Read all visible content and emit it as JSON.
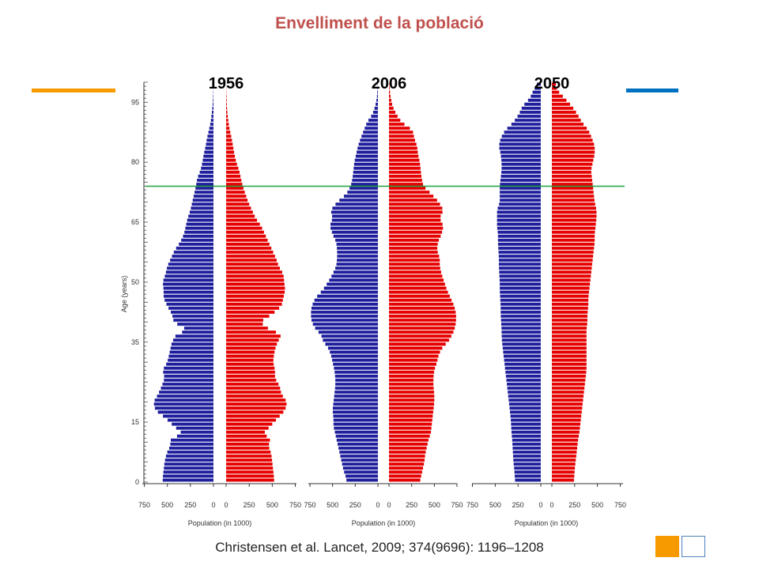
{
  "slide": {
    "title": "Envelliment de la població",
    "citation": "Christensen et al. Lancet, 2009; 374(9696): 1196–1208"
  },
  "colors": {
    "male": "#1f1f9e",
    "female": "#e60000",
    "reference_line": "#22a040",
    "title": "#c0504d",
    "accent_orange": "#f79a00",
    "accent_blue": "#0070c0"
  },
  "chart_data": {
    "type": "bar",
    "subtype": "population-pyramid",
    "ylabel": "Age (years)",
    "xlabel": "Population (in 1000)",
    "ylim": [
      0,
      100
    ],
    "xlim": [
      0,
      750
    ],
    "ytick_labels": [
      "0",
      "15",
      "35",
      "50",
      "65",
      "80",
      "95"
    ],
    "xtick_labels": [
      "750",
      "500",
      "250",
      "0",
      "0",
      "250",
      "500",
      "750"
    ],
    "reference_line_age": 74,
    "age_knots": [
      0,
      1,
      3,
      5,
      7,
      9,
      11,
      12,
      14,
      16,
      18,
      20,
      22,
      24,
      26,
      28,
      30,
      32,
      34,
      35,
      37,
      38,
      40,
      42,
      44,
      46,
      48,
      50,
      52,
      54,
      56,
      58,
      60,
      62,
      64,
      66,
      68,
      70,
      72,
      74,
      76,
      78,
      80,
      82,
      84,
      86,
      88,
      90,
      92,
      94,
      96,
      98,
      100
    ],
    "panels": [
      {
        "year": "1956",
        "male": [
          550,
          550,
          540,
          530,
          510,
          470,
          460,
          330,
          430,
          520,
          630,
          650,
          600,
          560,
          530,
          550,
          500,
          480,
          460,
          450,
          400,
          280,
          430,
          450,
          500,
          540,
          540,
          550,
          520,
          500,
          460,
          420,
          360,
          320,
          300,
          280,
          250,
          230,
          210,
          190,
          175,
          140,
          120,
          105,
          85,
          70,
          50,
          30,
          20,
          10,
          5,
          2,
          0
        ],
        "female": [
          520,
          520,
          510,
          500,
          490,
          460,
          480,
          400,
          480,
          560,
          640,
          660,
          600,
          580,
          530,
          530,
          510,
          520,
          540,
          560,
          600,
          480,
          370,
          500,
          600,
          620,
          640,
          630,
          620,
          570,
          540,
          500,
          460,
          420,
          380,
          320,
          280,
          240,
          210,
          180,
          160,
          140,
          110,
          90,
          75,
          60,
          40,
          25,
          15,
          8,
          5,
          2,
          0
        ]
      },
      {
        "year": "2006",
        "male": [
          345,
          350,
          380,
          400,
          420,
          440,
          460,
          470,
          490,
          490,
          500,
          490,
          480,
          470,
          470,
          480,
          500,
          520,
          560,
          600,
          630,
          680,
          730,
          740,
          730,
          690,
          610,
          550,
          500,
          460,
          450,
          450,
          460,
          500,
          530,
          500,
          520,
          450,
          350,
          300,
          280,
          270,
          260,
          240,
          220,
          190,
          155,
          120,
          60,
          30,
          12,
          5,
          2
        ],
        "female": [
          340,
          350,
          370,
          390,
          400,
          420,
          440,
          460,
          470,
          480,
          490,
          500,
          500,
          490,
          490,
          500,
          530,
          550,
          600,
          650,
          700,
          720,
          740,
          740,
          720,
          680,
          640,
          610,
          580,
          560,
          560,
          530,
          540,
          580,
          600,
          560,
          600,
          550,
          470,
          380,
          360,
          350,
          340,
          320,
          310,
          280,
          260,
          140,
          80,
          40,
          20,
          8,
          3
        ],
        "male_note": "single overall data: values read from bar lengths"
      },
      {
        "year": "2050",
        "male": [
          280,
          285,
          290,
          300,
          305,
          310,
          315,
          320,
          325,
          330,
          340,
          350,
          360,
          370,
          380,
          390,
          400,
          410,
          420,
          425,
          430,
          430,
          435,
          440,
          440,
          445,
          450,
          450,
          455,
          460,
          460,
          465,
          470,
          470,
          480,
          480,
          480,
          450,
          450,
          450,
          440,
          430,
          430,
          440,
          460,
          440,
          390,
          300,
          240,
          200,
          120,
          80,
          30
        ],
        "female": [
          240,
          245,
          250,
          260,
          270,
          280,
          290,
          300,
          310,
          320,
          330,
          340,
          350,
          360,
          370,
          380,
          380,
          380,
          380,
          380,
          380,
          380,
          390,
          390,
          400,
          400,
          410,
          420,
          430,
          440,
          450,
          460,
          470,
          470,
          480,
          490,
          490,
          470,
          460,
          450,
          440,
          430,
          450,
          470,
          470,
          440,
          400,
          330,
          280,
          220,
          140,
          60,
          40
        ]
      }
    ]
  }
}
